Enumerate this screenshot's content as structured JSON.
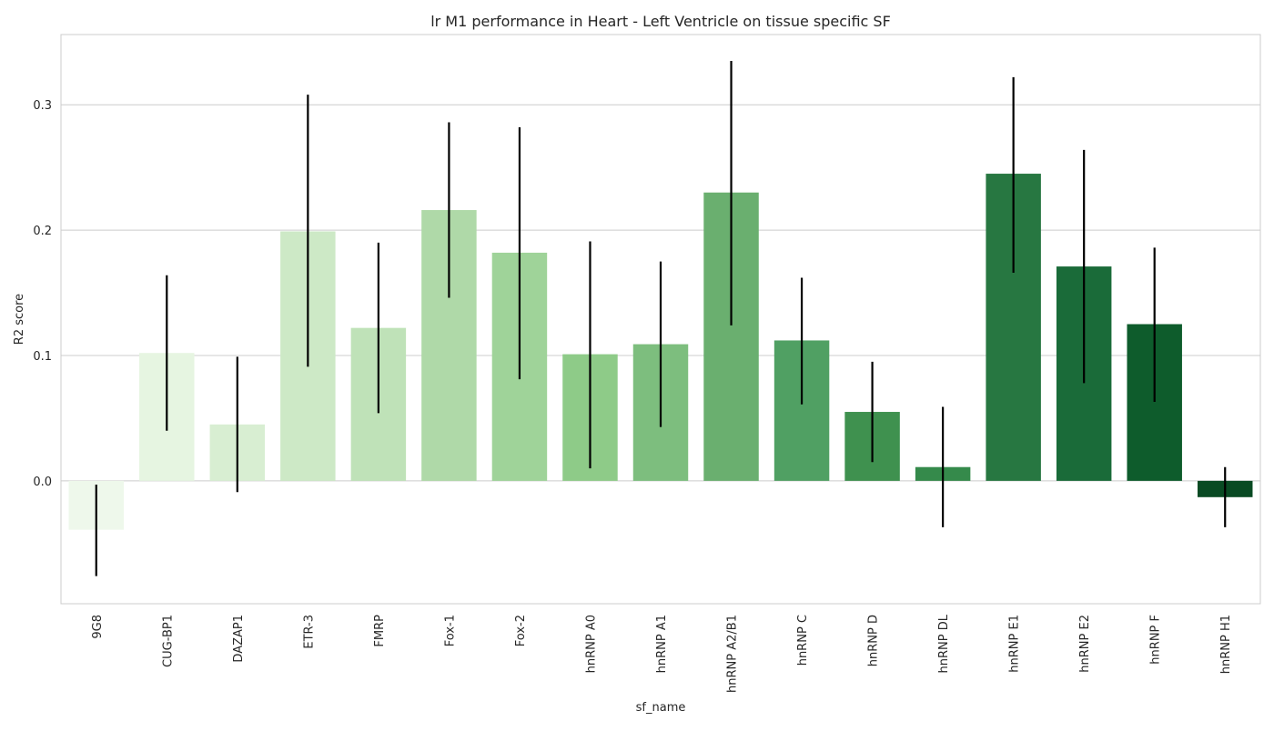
{
  "chart_data": {
    "type": "bar",
    "title": "lr M1 performance in Heart - Left Ventricle on tissue specific SF",
    "xlabel": "sf_name",
    "ylabel": "R2 score",
    "ylim": [
      -0.098,
      0.356
    ],
    "yticks": [
      0.0,
      0.1,
      0.2,
      0.3
    ],
    "ytick_labels": [
      "0.0",
      "0.1",
      "0.2",
      "0.3"
    ],
    "grid": "horizontal",
    "categories": [
      "9G8",
      "CUG-BP1",
      "DAZAP1",
      "ETR-3",
      "FMRP",
      "Fox-1",
      "Fox-2",
      "hnRNP A0",
      "hnRNP A1",
      "hnRNP A2/B1",
      "hnRNP C",
      "hnRNP D",
      "hnRNP DL",
      "hnRNP E1",
      "hnRNP E2",
      "hnRNP F",
      "hnRNP H1"
    ],
    "values": [
      -0.039,
      0.102,
      0.045,
      0.199,
      0.122,
      0.216,
      0.182,
      0.101,
      0.109,
      0.23,
      0.112,
      0.055,
      0.011,
      0.245,
      0.171,
      0.125,
      -0.013
    ],
    "error_low": [
      -0.076,
      0.04,
      -0.009,
      0.091,
      0.054,
      0.146,
      0.081,
      0.01,
      0.043,
      0.124,
      0.061,
      0.015,
      -0.037,
      0.166,
      0.078,
      0.063,
      -0.037
    ],
    "error_high": [
      -0.003,
      0.164,
      0.099,
      0.308,
      0.19,
      0.286,
      0.282,
      0.191,
      0.175,
      0.335,
      0.162,
      0.095,
      0.059,
      0.322,
      0.264,
      0.186,
      0.011
    ],
    "colors": [
      "#eef8eb",
      "#e6f5e1",
      "#d8eed2",
      "#cde9c6",
      "#bfe2b8",
      "#afd9a8",
      "#9fd399",
      "#8ecb88",
      "#7dbe7e",
      "#6aaf6f",
      "#50a063",
      "#3f914f",
      "#358a4b",
      "#277741",
      "#1a6b39",
      "#0e5c2c",
      "#094a23"
    ],
    "error_color": "#000000",
    "grid_color": "#cccccc",
    "spine_color": "#cccccc"
  }
}
